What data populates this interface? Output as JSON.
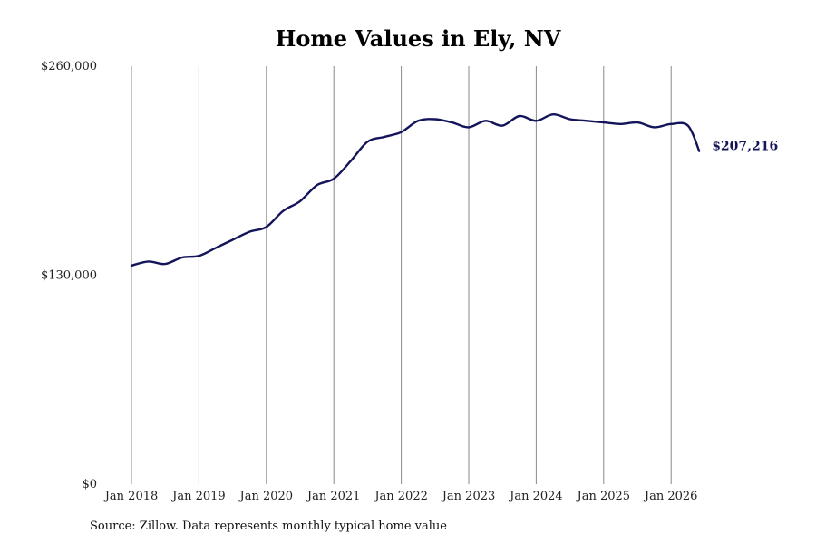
{
  "chart_data": {
    "type": "line",
    "title": "Home Values in Ely, NV",
    "xlabel": "",
    "ylabel": "",
    "ylim": [
      0,
      260000
    ],
    "yticks": [
      0,
      130000,
      260000
    ],
    "ytick_labels": [
      "$0",
      "$130,000",
      "$260,000"
    ],
    "xtick_labels": [
      "Jan 2018",
      "Jan 2019",
      "Jan 2020",
      "Jan 2021",
      "Jan 2022",
      "Jan 2023",
      "Jan 2024",
      "Jan 2025",
      "Jan 2026"
    ],
    "x_range": [
      "2018-01",
      "2026-06"
    ],
    "grid": "vertical",
    "line_color": "#14145a",
    "end_label": "$207,216",
    "x": [
      "2018-01",
      "2018-04",
      "2018-07",
      "2018-10",
      "2019-01",
      "2019-04",
      "2019-07",
      "2019-10",
      "2020-01",
      "2020-04",
      "2020-07",
      "2020-10",
      "2021-01",
      "2021-04",
      "2021-07",
      "2021-10",
      "2022-01",
      "2022-04",
      "2022-07",
      "2022-10",
      "2023-01",
      "2023-04",
      "2023-07",
      "2023-10",
      "2024-01",
      "2024-04",
      "2024-07",
      "2024-10",
      "2025-01",
      "2025-04",
      "2025-07",
      "2025-10",
      "2026-01",
      "2026-04",
      "2026-06"
    ],
    "values": [
      136000,
      138500,
      137000,
      141000,
      142000,
      147000,
      152000,
      157000,
      160000,
      170000,
      176000,
      186000,
      190000,
      201000,
      213000,
      216000,
      219000,
      226000,
      227000,
      225000,
      222000,
      226000,
      223000,
      229000,
      226000,
      230000,
      227000,
      226000,
      225000,
      224000,
      225000,
      222000,
      224000,
      223000,
      207216
    ]
  },
  "footer": {
    "source": "Source: Zillow. Data represents monthly typical home value"
  }
}
